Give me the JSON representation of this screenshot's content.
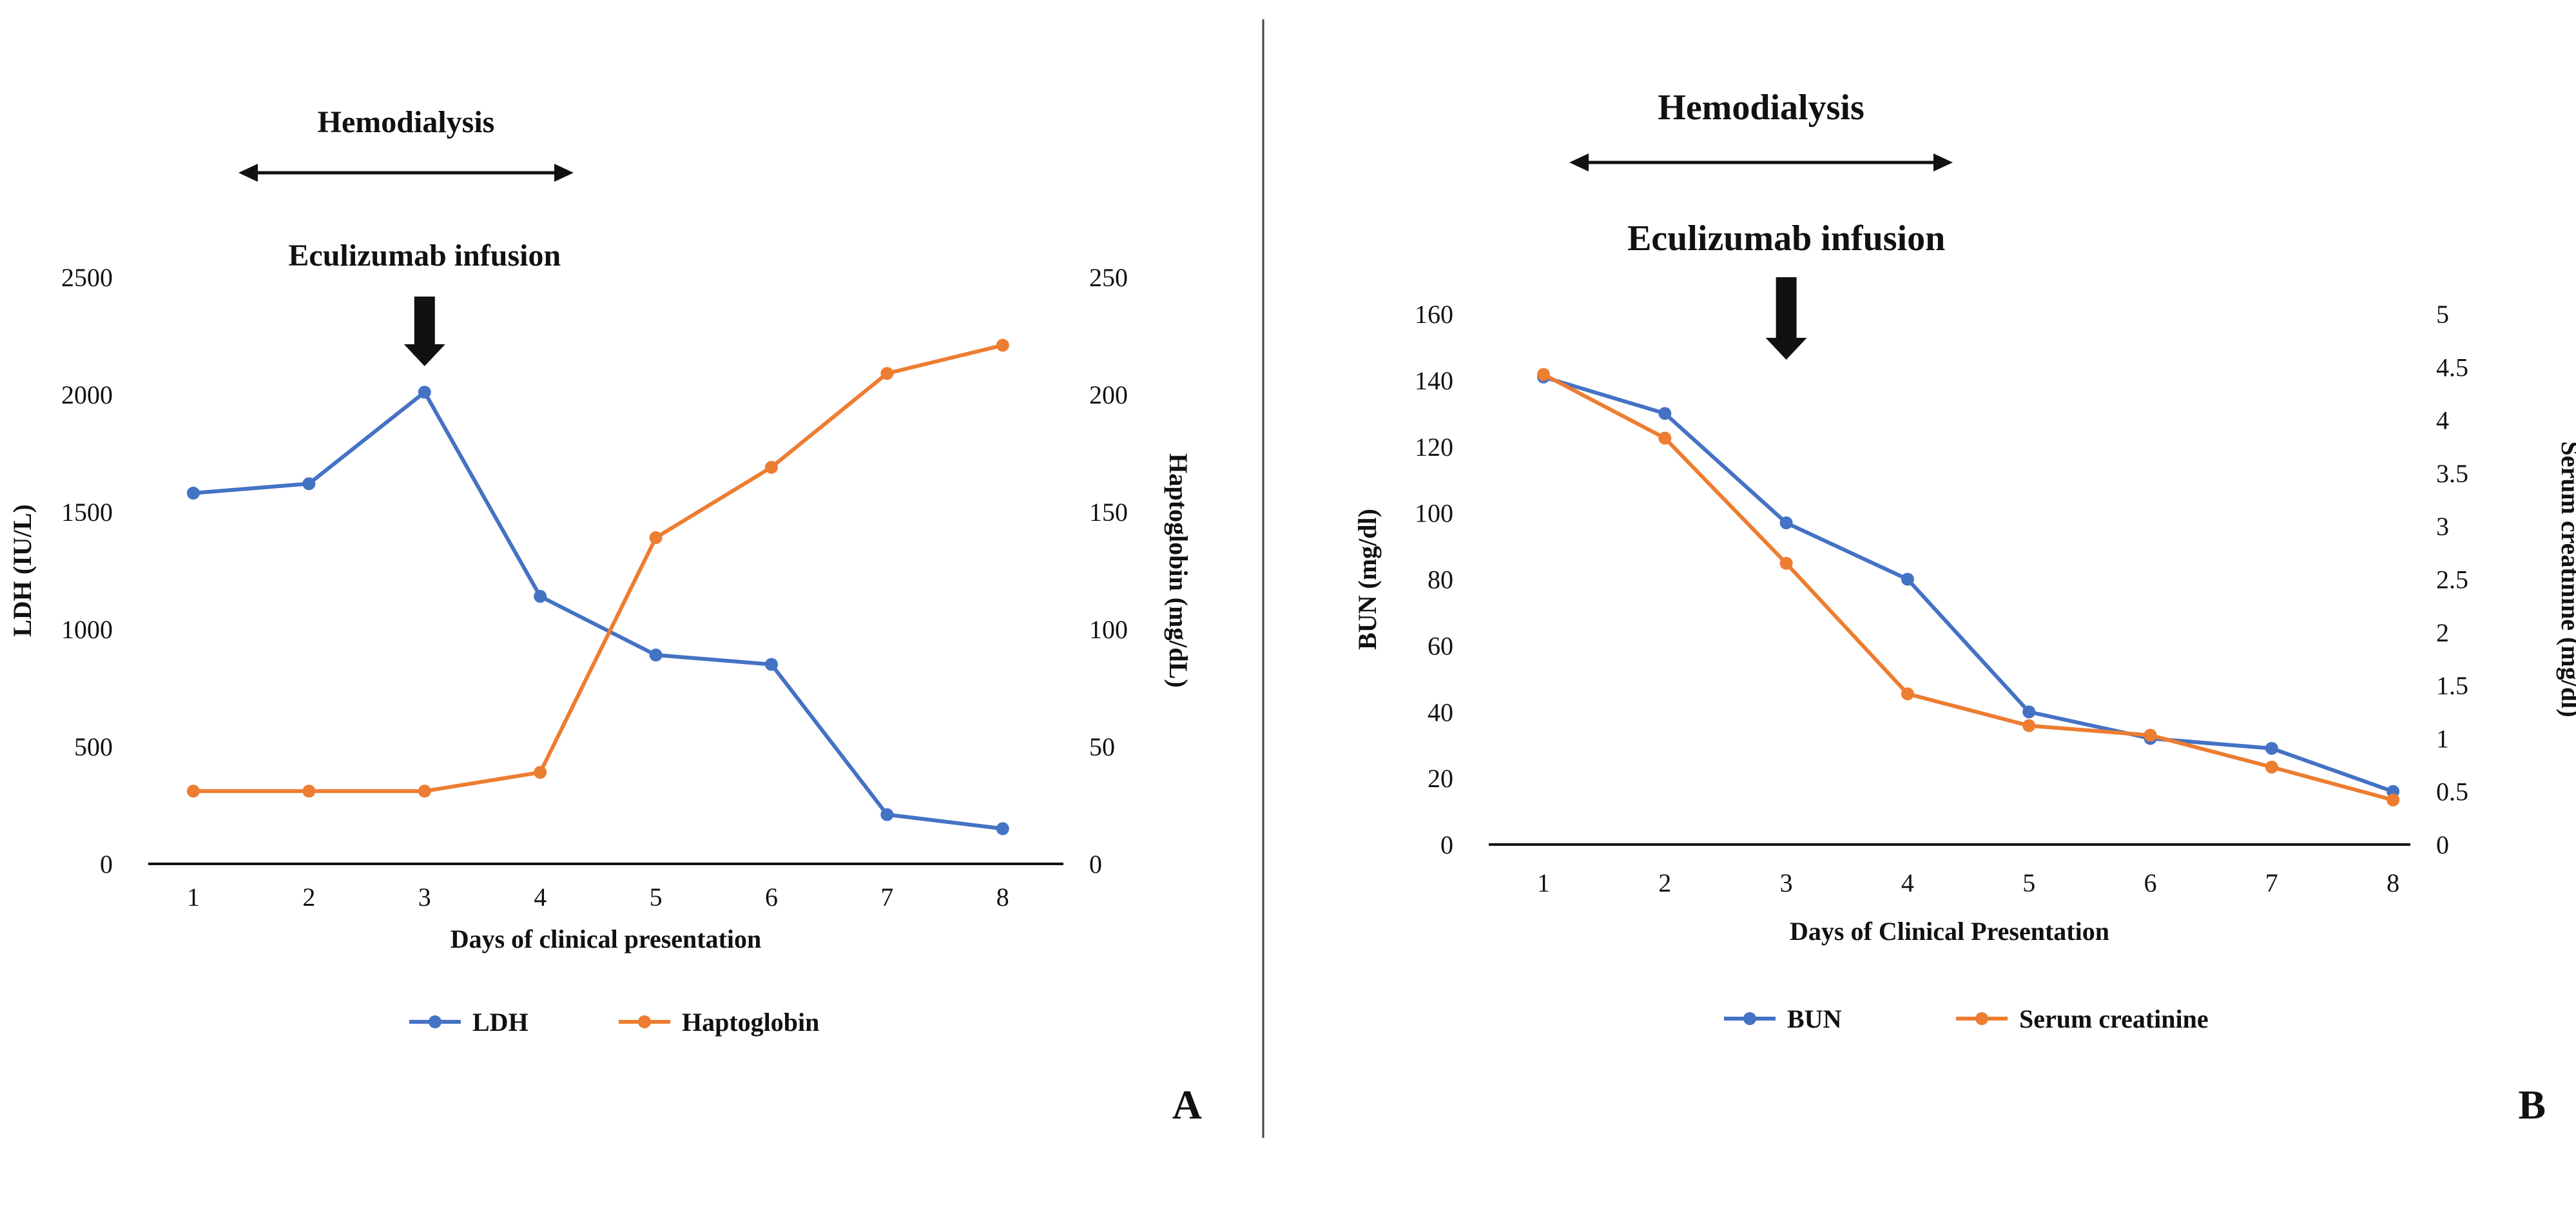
{
  "colors": {
    "blue": "#4472C4",
    "orange": "#ED7D31",
    "axis": "#111111"
  },
  "chart_data": [
    {
      "panel_label": "A",
      "type": "line",
      "x": [
        1,
        2,
        3,
        4,
        5,
        6,
        7,
        8
      ],
      "xlabel": "Days of clinical presentation",
      "ylabel_left": "LDH (IU/L)",
      "ylabel_right": "Haptoglobin (mg/dL)",
      "ylim_left": [
        0,
        2500
      ],
      "ylim_right": [
        0,
        250
      ],
      "yticks_left": [
        "0",
        "500",
        "1000",
        "1500",
        "2000",
        "2500"
      ],
      "yticks_right": [
        "0",
        "50",
        "100",
        "150",
        "200",
        "250"
      ],
      "grid": false,
      "legend_position": "bottom",
      "annotations": {
        "arrow_label": "Eculizumab infusion",
        "arrow_x": 3,
        "span_label": "Hemodialysis",
        "span_x": [
          1.4,
          4.2
        ]
      },
      "series": [
        {
          "name": "LDH",
          "axis": "left",
          "color": "#4472C4",
          "values": [
            1580,
            1620,
            2010,
            1140,
            890,
            850,
            210,
            150
          ]
        },
        {
          "name": "Haptoglobin",
          "axis": "right",
          "color": "#ED7D31",
          "values": [
            31,
            31,
            31,
            39,
            139,
            169,
            209,
            221
          ]
        }
      ]
    },
    {
      "panel_label": "B",
      "type": "line",
      "x": [
        1,
        2,
        3,
        4,
        5,
        6,
        7,
        8
      ],
      "xlabel": "Days of Clinical Presentation",
      "ylabel_left": "BUN (mg/dl)",
      "ylabel_right": "Serum creatinine (mg/dl)",
      "ylim_left": [
        0,
        160
      ],
      "ylim_right": [
        0,
        5
      ],
      "yticks_left": [
        "0",
        "20",
        "40",
        "60",
        "80",
        "100",
        "120",
        "140",
        "160"
      ],
      "yticks_right": [
        "0",
        "0.5",
        "1",
        "1.5",
        "2",
        "2.5",
        "3",
        "3.5",
        "4",
        "4.5",
        "5"
      ],
      "grid": false,
      "legend_position": "bottom",
      "annotations": {
        "arrow_label": "Eculizumab infusion",
        "arrow_x": 3,
        "span_label": "Hemodialysis",
        "span_x": [
          1.25,
          4.4
        ]
      },
      "series": [
        {
          "name": "BUN",
          "axis": "left",
          "color": "#4472C4",
          "values": [
            141,
            130,
            97,
            80,
            40,
            32,
            29,
            16
          ]
        },
        {
          "name": "Serum creatinine",
          "axis": "right",
          "color": "#ED7D31",
          "values": [
            4.43,
            3.83,
            2.65,
            1.42,
            1.12,
            1.03,
            0.73,
            0.42
          ]
        }
      ]
    }
  ]
}
